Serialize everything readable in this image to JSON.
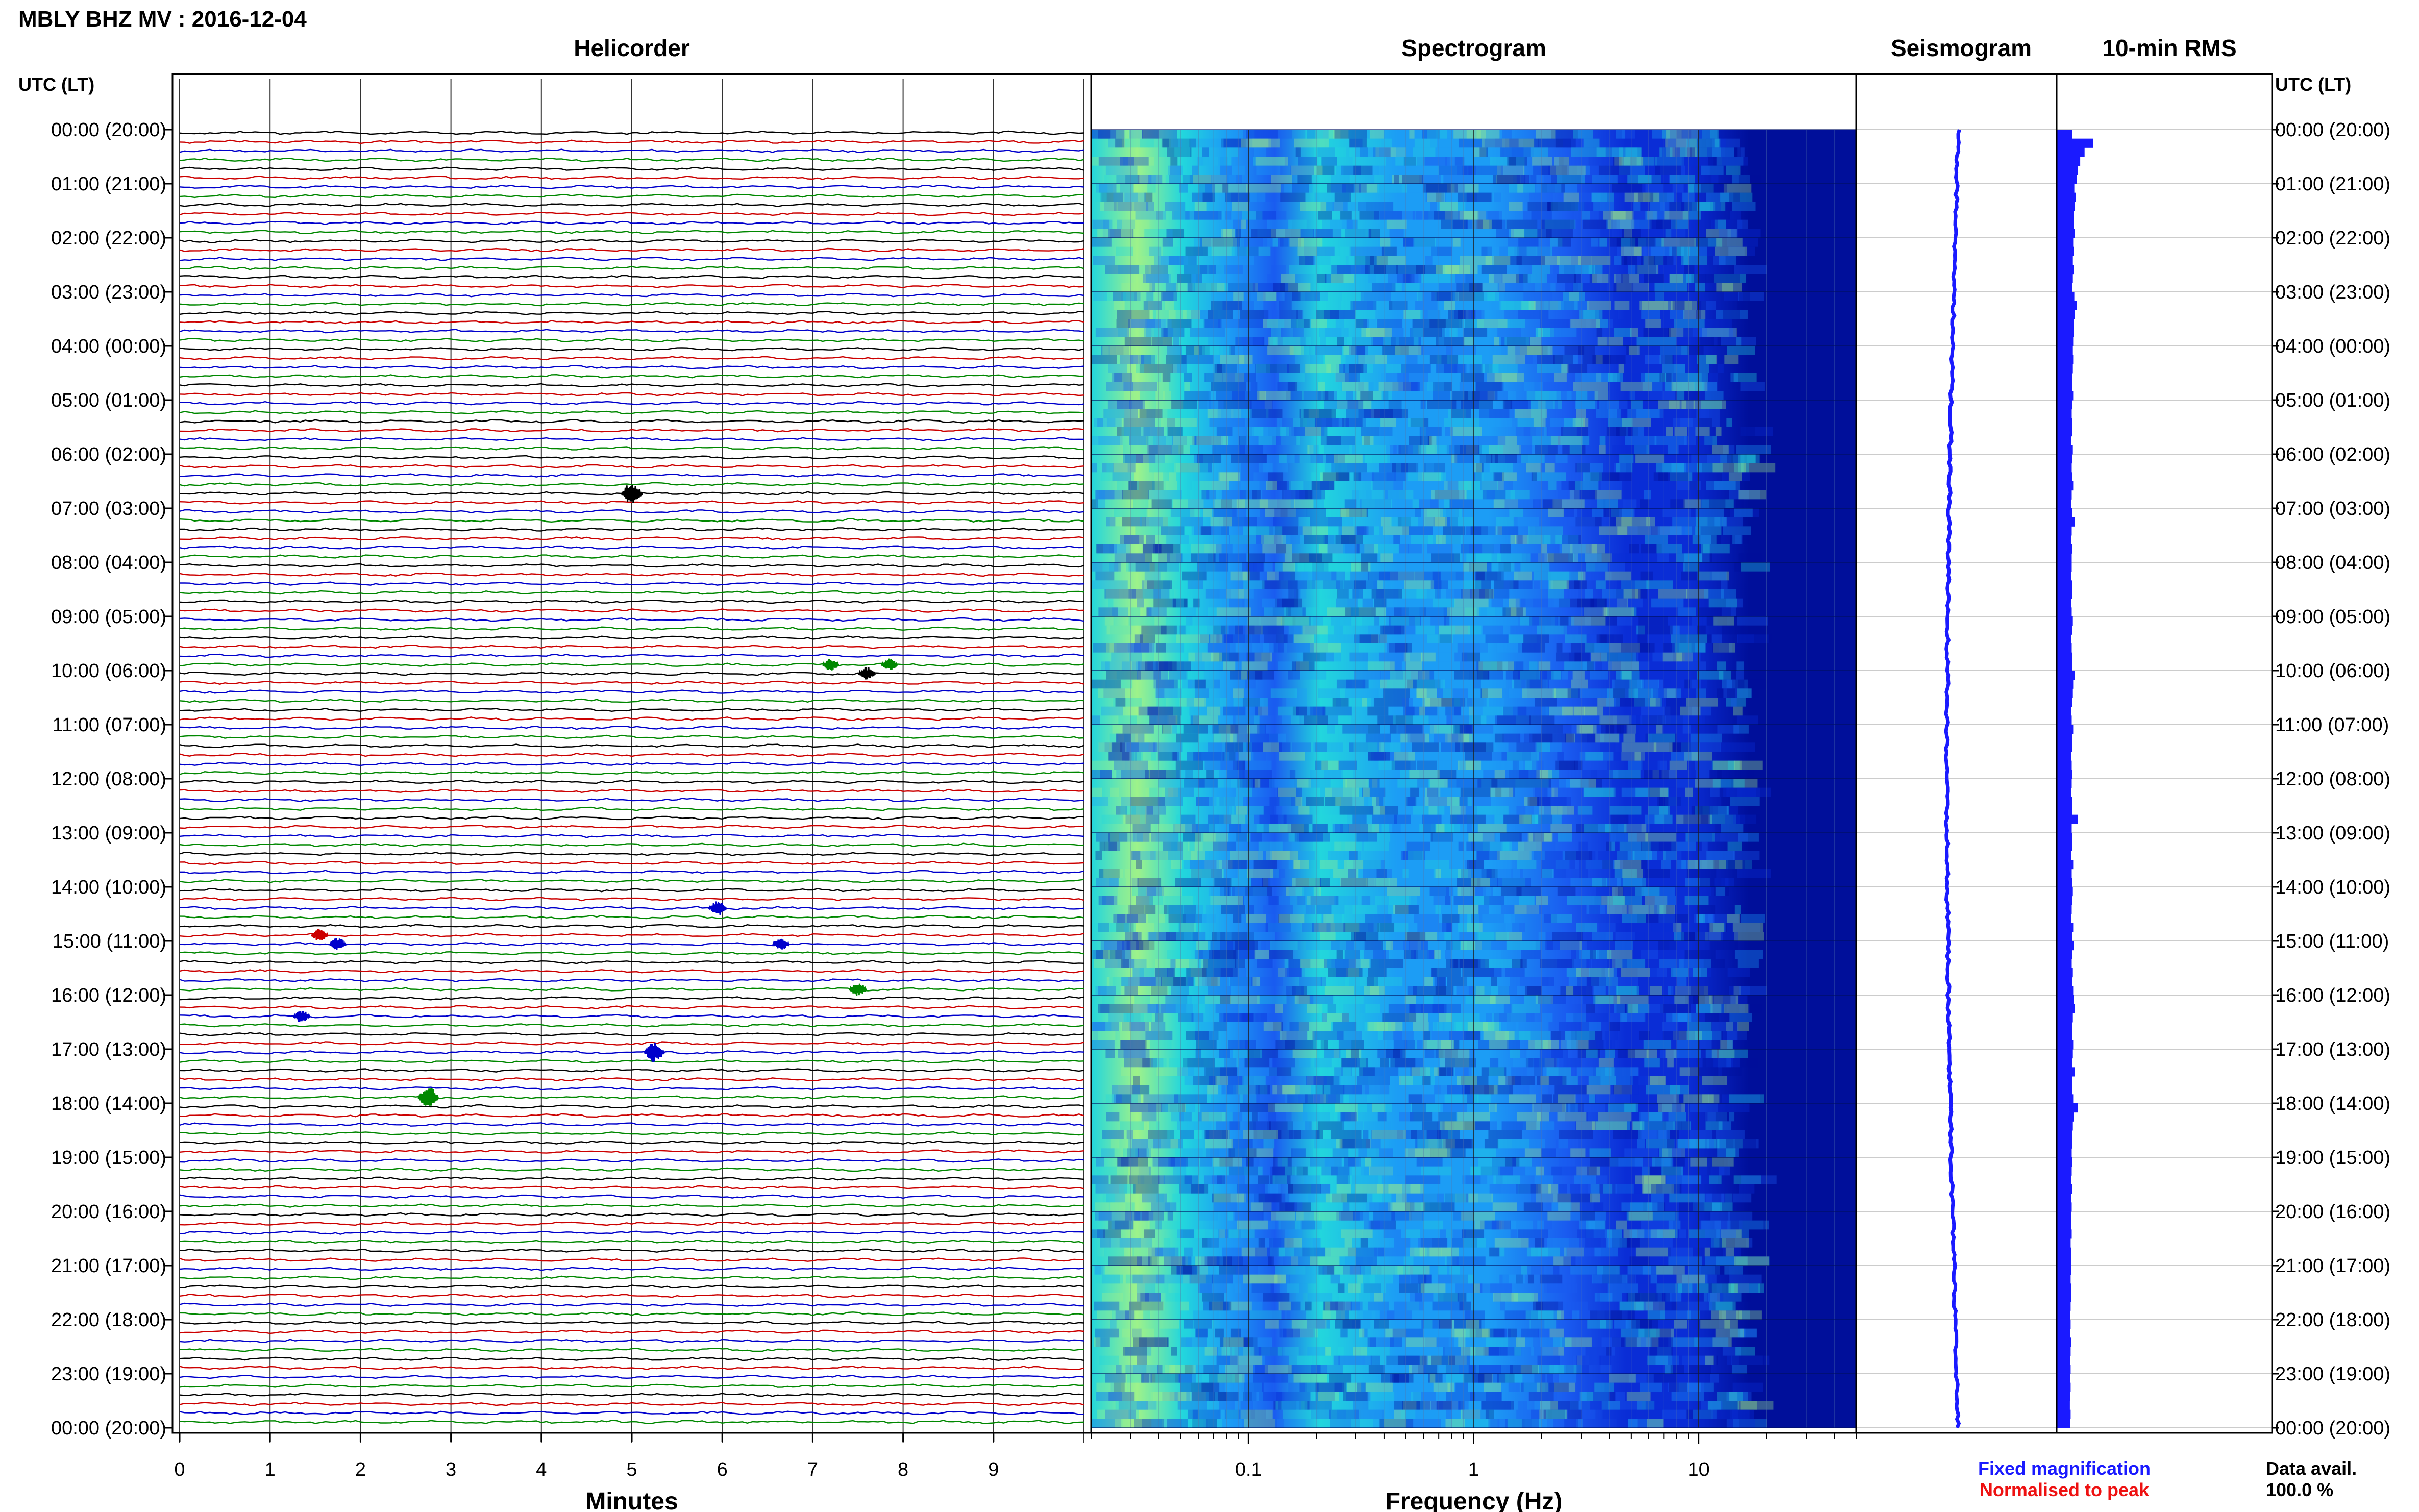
{
  "header": {
    "title": "MBLY BHZ MV : 2016-12-04",
    "time_axis_label": "UTC (LT)"
  },
  "panels": {
    "helicorder": "Helicorder",
    "spectrogram": "Spectrogram",
    "seismogram": "Seismogram",
    "rms": "10-min RMS"
  },
  "hour_labels": [
    "00:00 (20:00)",
    "01:00 (21:00)",
    "02:00 (22:00)",
    "03:00 (23:00)",
    "04:00 (00:00)",
    "05:00 (01:00)",
    "06:00 (02:00)",
    "07:00 (03:00)",
    "08:00 (04:00)",
    "09:00 (05:00)",
    "10:00 (06:00)",
    "11:00 (07:00)",
    "12:00 (08:00)",
    "13:00 (09:00)",
    "14:00 (10:00)",
    "15:00 (11:00)",
    "16:00 (12:00)",
    "17:00 (13:00)",
    "18:00 (14:00)",
    "19:00 (15:00)",
    "20:00 (16:00)",
    "21:00 (17:00)",
    "22:00 (18:00)",
    "23:00 (19:00)",
    "00:00 (20:00)"
  ],
  "legend": {
    "fixed": "Fixed magnification",
    "normalised": "Normalised to peak",
    "fixed_color": "#1a1aff",
    "normalised_color": "#ee1111"
  },
  "availability": {
    "label": "Data avail.",
    "value": "100.0 %"
  },
  "chart_data": [
    {
      "type": "line",
      "panel": "helicorder",
      "xlabel": "Minutes",
      "x_ticks": [
        "0",
        "1",
        "2",
        "3",
        "4",
        "5",
        "6",
        "7",
        "8",
        "9"
      ],
      "xlim": [
        0,
        10
      ],
      "traces_per_hour": 6,
      "trace_minutes": 10,
      "trace_colors": [
        "#000000",
        "#cc0000",
        "#0000cc",
        "#008800"
      ],
      "events": [
        {
          "hour": 6,
          "trace": 4,
          "minute": 5.0,
          "amp": 1.6
        },
        {
          "hour": 9,
          "trace": 5,
          "minute": 7.2,
          "amp": 0.6
        },
        {
          "hour": 9,
          "trace": 5,
          "minute": 7.85,
          "amp": 0.6
        },
        {
          "hour": 10,
          "trace": 0,
          "minute": 7.6,
          "amp": 0.7
        },
        {
          "hour": 14,
          "trace": 2,
          "minute": 5.95,
          "amp": 0.9
        },
        {
          "hour": 14,
          "trace": 5,
          "minute": 1.55,
          "amp": 0.7
        },
        {
          "hour": 15,
          "trace": 0,
          "minute": 1.75,
          "amp": 0.7
        },
        {
          "hour": 15,
          "trace": 0,
          "minute": 6.65,
          "amp": 0.7
        },
        {
          "hour": 15,
          "trace": 5,
          "minute": 7.5,
          "amp": 0.8
        },
        {
          "hour": 16,
          "trace": 2,
          "minute": 1.35,
          "amp": 0.7
        },
        {
          "hour": 17,
          "trace": 0,
          "minute": 5.25,
          "amp": 1.4
        },
        {
          "hour": 17,
          "trace": 5,
          "minute": 2.75,
          "amp": 1.5
        }
      ]
    },
    {
      "type": "heatmap",
      "panel": "spectrogram",
      "xlabel": "Frequency (Hz)",
      "x_scale": "log",
      "xlim": [
        0.02,
        50
      ],
      "x_ticks": [
        0.1,
        1,
        10
      ],
      "x_tick_labels": [
        "0.1",
        "1",
        "10"
      ],
      "colormap": [
        "#000f9a",
        "#0a2dd6",
        "#1a5cf0",
        "#1c9df5",
        "#22d6dd",
        "#9ef28a"
      ]
    },
    {
      "type": "line",
      "panel": "seismogram",
      "series_color": "#1a1aff"
    },
    {
      "type": "bar",
      "panel": "rms",
      "series_color": "#1a1aff",
      "bins_per_hour": 6,
      "values_relative": [
        0.42,
        1.0,
        0.76,
        0.64,
        0.58,
        0.55,
        0.48,
        0.52,
        0.5,
        0.47,
        0.46,
        0.49,
        0.45,
        0.47,
        0.44,
        0.46,
        0.44,
        0.43,
        0.48,
        0.55,
        0.5,
        0.47,
        0.46,
        0.45,
        0.44,
        0.45,
        0.44,
        0.43,
        0.42,
        0.45,
        0.42,
        0.41,
        0.43,
        0.42,
        0.4,
        0.44,
        0.43,
        0.41,
        0.42,
        0.45,
        0.41,
        0.4,
        0.42,
        0.5,
        0.41,
        0.4,
        0.42,
        0.41,
        0.41,
        0.4,
        0.42,
        0.43,
        0.4,
        0.41,
        0.44,
        0.42,
        0.4,
        0.41,
        0.43,
        0.42,
        0.5,
        0.45,
        0.44,
        0.42,
        0.4,
        0.41,
        0.45,
        0.43,
        0.42,
        0.4,
        0.41,
        0.42,
        0.41,
        0.4,
        0.43,
        0.42,
        0.58,
        0.41,
        0.43,
        0.42,
        0.4,
        0.45,
        0.41,
        0.42,
        0.44,
        0.42,
        0.41,
        0.4,
        0.45,
        0.43,
        0.47,
        0.42,
        0.41,
        0.44,
        0.43,
        0.45,
        0.47,
        0.5,
        0.44,
        0.43,
        0.42,
        0.45,
        0.44,
        0.43,
        0.5,
        0.42,
        0.43,
        0.45,
        0.58,
        0.46,
        0.44,
        0.43,
        0.42,
        0.41,
        0.42,
        0.41,
        0.4,
        0.42,
        0.4,
        0.41,
        0.39,
        0.4,
        0.41,
        0.38,
        0.39,
        0.4,
        0.39,
        0.38,
        0.4,
        0.39,
        0.38,
        0.37,
        0.38,
        0.37,
        0.39,
        0.38,
        0.37,
        0.38,
        0.37,
        0.38,
        0.37,
        0.36,
        0.38,
        0.37
      ]
    }
  ]
}
